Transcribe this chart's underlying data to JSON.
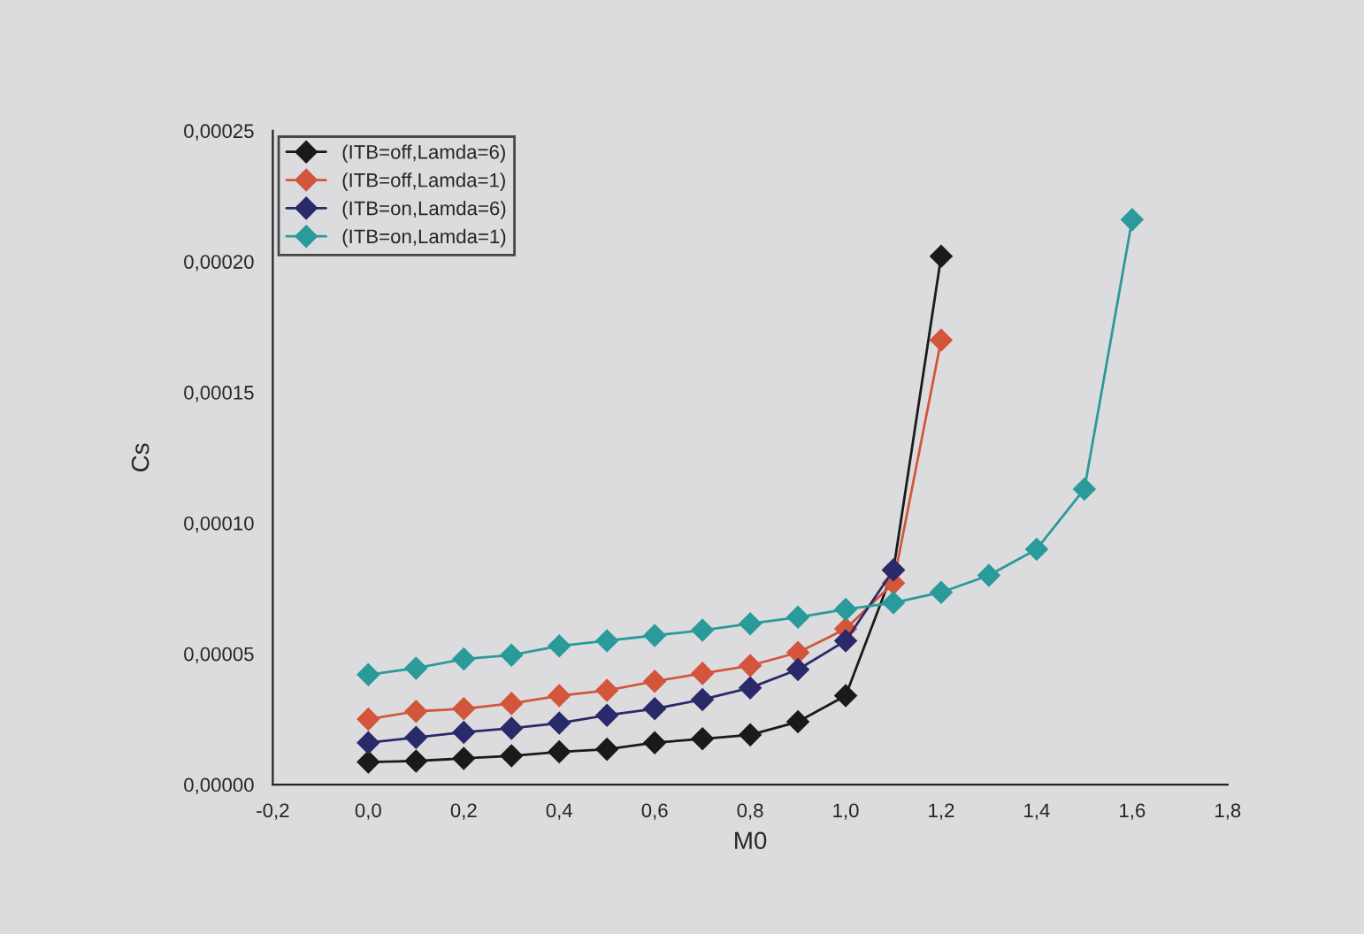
{
  "chart_data": {
    "type": "line",
    "xlabel": "M0",
    "ylabel": "Cs",
    "marker": "diamond",
    "line_style": "solid",
    "grid": false,
    "legend": "top left",
    "x": [
      0.0,
      0.1,
      0.2,
      0.3,
      0.4,
      0.5,
      0.6,
      0.7,
      0.8,
      0.9,
      1.0,
      1.1,
      1.2,
      1.3,
      1.4,
      1.5,
      1.6
    ],
    "series": [
      {
        "name": "(ITB=off,Lamda=6)",
        "color": "#1a1a1a",
        "values": [
          8.6e-06,
          9e-06,
          1e-05,
          1.1e-05,
          1.25e-05,
          1.35e-05,
          1.6e-05,
          1.75e-05,
          1.9e-05,
          2.4e-05,
          3.4e-05,
          8.2e-05,
          0.000202,
          null,
          null,
          null,
          null
        ]
      },
      {
        "name": "(ITB=off,Lamda=1)",
        "color": "#d2553c",
        "values": [
          2.5e-05,
          2.8e-05,
          2.9e-05,
          3.1e-05,
          3.4e-05,
          3.6e-05,
          3.95e-05,
          4.25e-05,
          4.55e-05,
          5.05e-05,
          5.95e-05,
          7.7e-05,
          0.00017,
          null,
          null,
          null,
          null
        ]
      },
      {
        "name": "(ITB=on,Lamda=6)",
        "color": "#2a2a6a",
        "values": [
          1.6e-05,
          1.8e-05,
          2e-05,
          2.15e-05,
          2.35e-05,
          2.65e-05,
          2.9e-05,
          3.25e-05,
          3.7e-05,
          4.4e-05,
          5.5e-05,
          8.2e-05,
          null,
          null,
          null,
          null,
          null
        ]
      },
      {
        "name": "(ITB=on,Lamda=1)",
        "color": "#2a9a9a",
        "values": [
          4.2e-05,
          4.45e-05,
          4.8e-05,
          4.95e-05,
          5.3e-05,
          5.5e-05,
          5.7e-05,
          5.9e-05,
          6.15e-05,
          6.4e-05,
          6.7e-05,
          6.95e-05,
          7.35e-05,
          8e-05,
          9e-05,
          0.000113,
          0.000216
        ]
      }
    ],
    "xlim": [
      -0.2,
      1.8
    ],
    "ylim": [
      0,
      0.00025
    ],
    "xticks": [
      {
        "value": -0.2,
        "label": "-0,2"
      },
      {
        "value": 0.0,
        "label": "0,0"
      },
      {
        "value": 0.2,
        "label": "0,2"
      },
      {
        "value": 0.4,
        "label": "0,4"
      },
      {
        "value": 0.6,
        "label": "0,6"
      },
      {
        "value": 0.8,
        "label": "0,8"
      },
      {
        "value": 1.0,
        "label": "1,0"
      },
      {
        "value": 1.2,
        "label": "1,2"
      },
      {
        "value": 1.4,
        "label": "1,4"
      },
      {
        "value": 1.6,
        "label": "1,6"
      },
      {
        "value": 1.8,
        "label": "1,8"
      }
    ],
    "yticks": [
      {
        "value": 0,
        "label": "0,00000"
      },
      {
        "value": 5e-05,
        "label": "0,00005"
      },
      {
        "value": 0.0001,
        "label": "0,00010"
      },
      {
        "value": 0.00015,
        "label": "0,00015"
      },
      {
        "value": 0.0002,
        "label": "0,00020"
      },
      {
        "value": 0.00025,
        "label": "0,00025"
      }
    ]
  }
}
